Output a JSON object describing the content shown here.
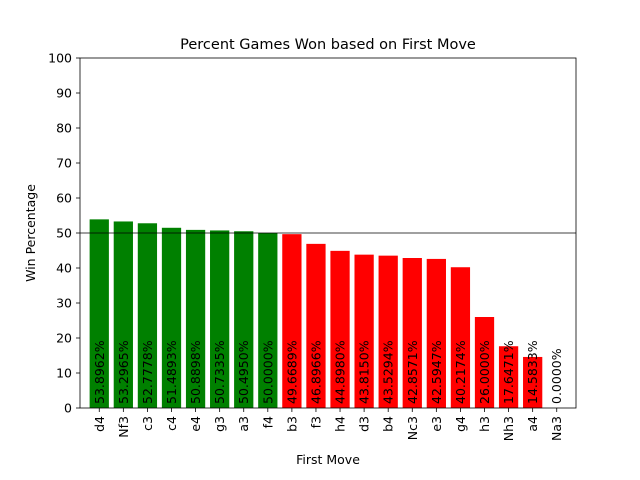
{
  "chart_data": {
    "type": "bar",
    "title": "Percent Games Won based on First Move",
    "xlabel": "First Move",
    "ylabel": "Win Percentage",
    "ylim": [
      0,
      100
    ],
    "yticks": [
      0,
      10,
      20,
      30,
      40,
      50,
      60,
      70,
      80,
      90,
      100
    ],
    "grid": false,
    "legend": "none",
    "reference_line": 50,
    "categories": [
      "d4",
      "Nf3",
      "c3",
      "c4",
      "e4",
      "g3",
      "a3",
      "f4",
      "b3",
      "f3",
      "h4",
      "d3",
      "b4",
      "Nc3",
      "e3",
      "g4",
      "h3",
      "Nh3",
      "a4",
      "Na3"
    ],
    "values": [
      53.8962,
      53.2965,
      52.7778,
      51.4893,
      50.8898,
      50.7335,
      50.495,
      50.0,
      49.6689,
      46.8966,
      44.898,
      43.815,
      43.5294,
      42.8571,
      42.5947,
      40.2174,
      26.0,
      17.6471,
      14.5833,
      0.0
    ],
    "labels": [
      "53.8962%",
      "53.2965%",
      "52.7778%",
      "51.4893%",
      "50.8898%",
      "50.7335%",
      "50.4950%",
      "50.0000%",
      "49.6689%",
      "46.8966%",
      "44.8980%",
      "43.8150%",
      "43.5294%",
      "42.8571%",
      "42.5947%",
      "40.2174%",
      "26.0000%",
      "17.6471%",
      "14.5833%",
      "0.0000%"
    ],
    "colors": {
      "above_50": "#008000",
      "below_50": "#ff0000",
      "reference_line": "#000000"
    }
  }
}
